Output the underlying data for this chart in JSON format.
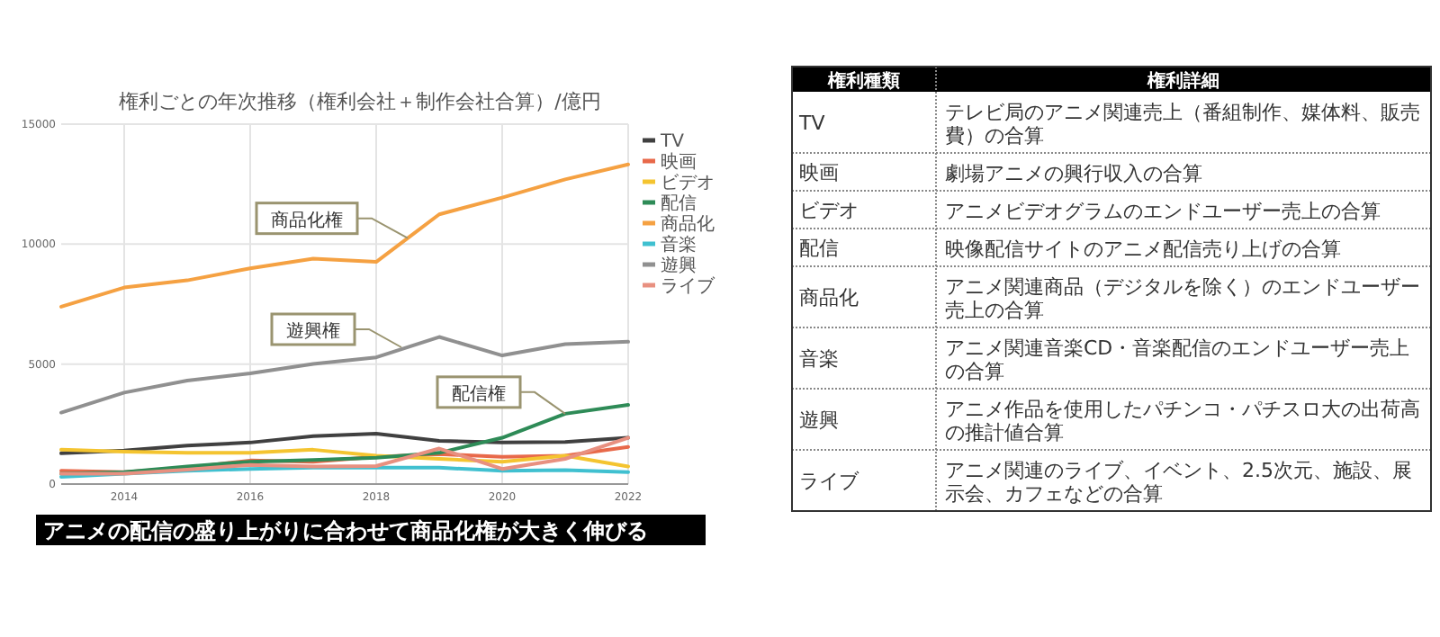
{
  "chart_data": [
    {
      "type": "line",
      "title": "権利ごとの年次推移（権利会社＋制作会社合算）/億円",
      "x": [
        2013,
        2014,
        2015,
        2016,
        2017,
        2018,
        2019,
        2020,
        2021,
        2022
      ],
      "xlim": [
        2013,
        2022
      ],
      "xticks": [
        2014,
        2016,
        2018,
        2020,
        2022
      ],
      "ylim": [
        0,
        15000
      ],
      "yticks": [
        0,
        5000,
        10000,
        15000
      ],
      "grid": true,
      "legend": "right",
      "marker": "none",
      "line_style": "solid",
      "series": [
        {
          "name": "TV",
          "color": "#404040",
          "values": [
            1280,
            1400,
            1600,
            1730,
            2000,
            2100,
            1800,
            1730,
            1750,
            1930
          ]
        },
        {
          "name": "映画",
          "color": "#e8694a",
          "values": [
            550,
            500,
            680,
            980,
            930,
            1130,
            1250,
            1130,
            1180,
            1550
          ]
        },
        {
          "name": "ビデオ",
          "color": "#f4c430",
          "values": [
            1430,
            1350,
            1300,
            1300,
            1430,
            1180,
            1050,
            930,
            1180,
            730
          ]
        },
        {
          "name": "配信",
          "color": "#2e8b57",
          "values": [
            430,
            500,
            730,
            930,
            1000,
            1100,
            1300,
            1930,
            2930,
            3300
          ]
        },
        {
          "name": "商品化",
          "color": "#f5a142",
          "values": [
            7390,
            8190,
            8490,
            8990,
            9390,
            9260,
            11240,
            11940,
            12700,
            13320
          ]
        },
        {
          "name": "音楽",
          "color": "#40c0d0",
          "values": [
            300,
            430,
            550,
            630,
            680,
            680,
            680,
            550,
            580,
            500
          ]
        },
        {
          "name": "遊興",
          "color": "#909090",
          "values": [
            2980,
            3810,
            4310,
            4610,
            5010,
            5280,
            6130,
            5360,
            5830,
            5930
          ]
        },
        {
          "name": "ライブ",
          "color": "#e89080",
          "values": [
            430,
            430,
            600,
            800,
            730,
            750,
            1480,
            630,
            1050,
            1930
          ]
        }
      ],
      "annotations": [
        {
          "text": "商品化権",
          "x": 2018.5,
          "y": 10250
        },
        {
          "text": "遊興権",
          "x": 2018.4,
          "y": 5700
        },
        {
          "text": "配信権",
          "x": 2021,
          "y": 2930
        },
        "アニメの配信の盛り上がりに合わせて商品化権が大きく伸びる"
      ]
    },
    {
      "type": "other",
      "categories": [
        "権利種類",
        "権利詳細"
      ],
      "y_categories": [
        "TV",
        "映画",
        "ビデオ",
        "配信",
        "商品化",
        "音楽",
        "遊興",
        "ライブ"
      ],
      "cell_labels": [
        [
          "テレビ局のアニメ関連売上（番組制作、媒体料、販売費）の合算"
        ],
        [
          "劇場アニメの興行収入の合算"
        ],
        [
          "アニメビデオグラムのエンドユーザー売上の合算"
        ],
        [
          "映像配信サイトのアニメ配信売り上げの合算"
        ],
        [
          "アニメ関連商品（デジタルを除く）のエンドユーザー売上の合算"
        ],
        [
          "アニメ関連音楽CD・音楽配信のエンドユーザー売上の合算"
        ],
        [
          "アニメ作品を使用したパチンコ・パチスロ大の出荷高の推計値合算"
        ],
        [
          "アニメ関連のライブ、イベント、2.5次元、施設、展示会、カフェなどの合算"
        ]
      ]
    }
  ]
}
